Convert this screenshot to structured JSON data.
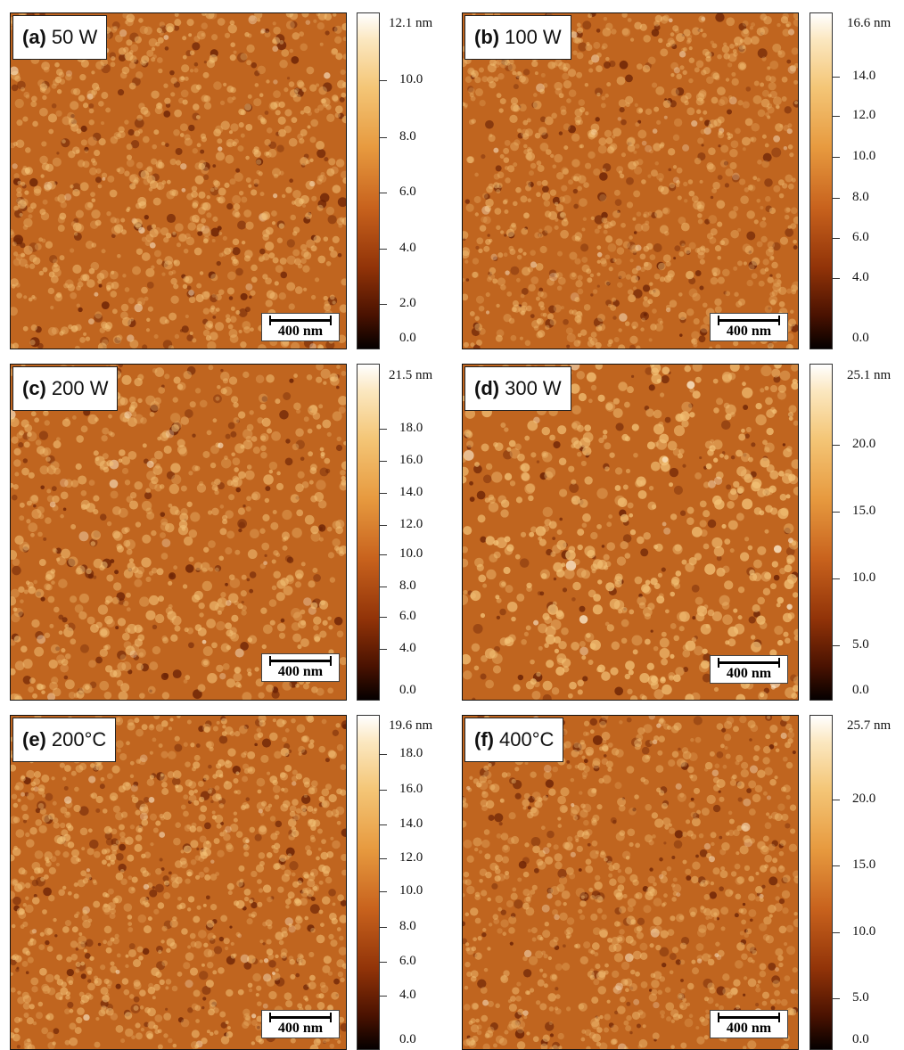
{
  "panels": [
    {
      "id": "a",
      "letter": "(a)",
      "condition": "50 W",
      "scale_bar": "400 nm",
      "colorbar": {
        "max": "12.1 nm",
        "ticks": [
          "10.0",
          "8.0",
          "6.0",
          "4.0",
          "2.0",
          "0.0"
        ]
      }
    },
    {
      "id": "b",
      "letter": "(b)",
      "condition": "100 W",
      "scale_bar": "400 nm",
      "colorbar": {
        "max": "16.6 nm",
        "ticks": [
          "14.0",
          "12.0",
          "10.0",
          "8.0",
          "6.0",
          "4.0",
          "0.0"
        ]
      }
    },
    {
      "id": "c",
      "letter": "(c)",
      "condition": "200 W",
      "scale_bar": "400 nm",
      "colorbar": {
        "max": "21.5 nm",
        "ticks": [
          "18.0",
          "16.0",
          "14.0",
          "12.0",
          "10.0",
          "8.0",
          "6.0",
          "4.0",
          "0.0"
        ]
      }
    },
    {
      "id": "d",
      "letter": "(d)",
      "condition": "300 W",
      "scale_bar": "400 nm",
      "colorbar": {
        "max": "25.1 nm",
        "ticks": [
          "20.0",
          "15.0",
          "10.0",
          "5.0",
          "0.0"
        ]
      }
    },
    {
      "id": "e",
      "letter": "(e)",
      "condition": "200°C",
      "scale_bar": "400 nm",
      "colorbar": {
        "max": "19.6 nm",
        "ticks": [
          "18.0",
          "16.0",
          "14.0",
          "12.0",
          "10.0",
          "8.0",
          "6.0",
          "4.0",
          "0.0"
        ]
      }
    },
    {
      "id": "f",
      "letter": "(f)",
      "condition": "400°C",
      "scale_bar": "400 nm",
      "colorbar": {
        "max": "25.7 nm",
        "ticks": [
          "20.0",
          "15.0",
          "10.0",
          "5.0",
          "0.0"
        ]
      }
    }
  ],
  "colors": {
    "surface_base": "#c0651f",
    "grain_light": "#f3c277",
    "grain_dark": "#6b2205"
  }
}
